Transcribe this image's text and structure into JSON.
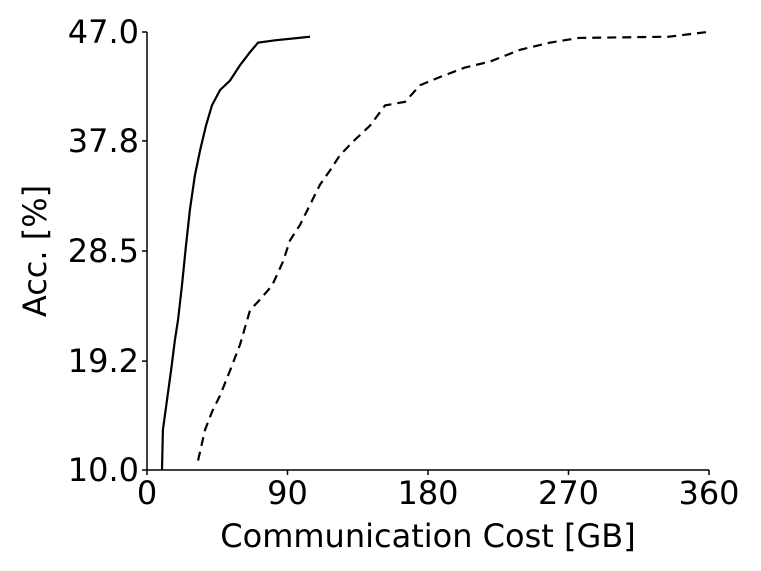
{
  "chart_data": {
    "type": "line",
    "xlabel": "Communication Cost [GB]",
    "ylabel": "Acc. [%]",
    "xlim": [
      0,
      360
    ],
    "ylim": [
      10,
      47
    ],
    "xticks": [
      0,
      90,
      180,
      270,
      360
    ],
    "yticks": [
      {
        "value": 10,
        "label": "10.0"
      },
      19.2,
      28.5,
      37.8,
      {
        "value": 47,
        "label": "47.0"
      }
    ],
    "grid": false,
    "series": [
      {
        "color": "#000000",
        "dash": false,
        "x": [
          9.6,
          10.2,
          12.8,
          15.4,
          17.9,
          19.9,
          22.4,
          25,
          27.5,
          30.7,
          34,
          37.8,
          41.6,
          46.8,
          53.2,
          59.6,
          66,
          71.1,
          82,
          104.4
        ],
        "values": [
          10,
          13.4,
          15.9,
          18.4,
          21,
          22.7,
          25.6,
          29,
          32,
          34.9,
          37,
          39.1,
          40.8,
          42.1,
          42.9,
          44.2,
          45.3,
          46.1,
          46.3,
          46.6
        ]
      },
      {
        "color": "#000000",
        "dash": true,
        "x": [
          32.7,
          37.2,
          41.6,
          46.8,
          53.2,
          59.6,
          66,
          72.4,
          80.2,
          87.1,
          91.6,
          98,
          104.4,
          110.8,
          117.2,
          123.6,
          133.2,
          142.9,
          152.5,
          165.3,
          174.9,
          187.7,
          203.7,
          219.7,
          239,
          258,
          276.7,
          334,
          359
        ],
        "values": [
          10.8,
          13.4,
          14.9,
          16.3,
          18.4,
          20.6,
          23.5,
          24.4,
          25.6,
          27.6,
          29.4,
          30.7,
          32.4,
          34.1,
          35.3,
          36.6,
          37.9,
          39.1,
          40.8,
          41.1,
          42.5,
          43.2,
          44,
          44.5,
          45.5,
          46.1,
          46.5,
          46.6,
          47
        ]
      }
    ]
  }
}
